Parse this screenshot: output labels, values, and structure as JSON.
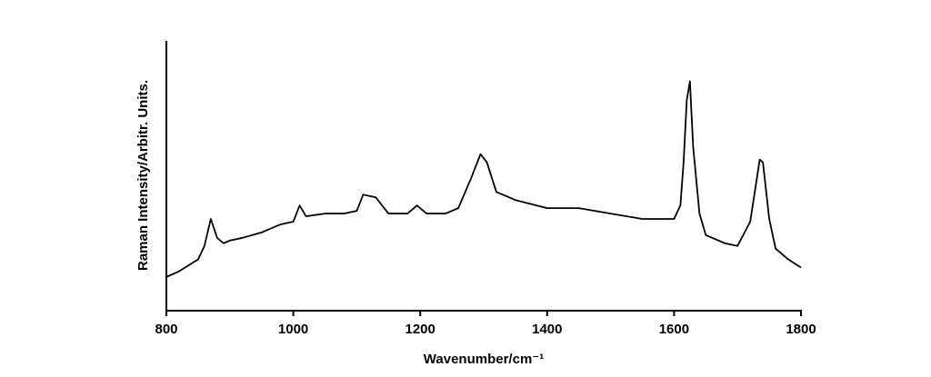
{
  "chart_data": {
    "type": "line",
    "xlabel": "Wavenumber/cm⁻¹",
    "ylabel": "Raman Intensity/Arbitr. Units.",
    "x": [
      800,
      820,
      850,
      860,
      870,
      880,
      890,
      900,
      920,
      950,
      980,
      1000,
      1010,
      1020,
      1050,
      1080,
      1100,
      1110,
      1130,
      1150,
      1180,
      1195,
      1210,
      1240,
      1260,
      1280,
      1295,
      1305,
      1320,
      1350,
      1400,
      1450,
      1500,
      1550,
      1600,
      1610,
      1615,
      1620,
      1625,
      1630,
      1640,
      1650,
      1680,
      1700,
      1720,
      1735,
      1740,
      1750,
      1760,
      1780,
      1800
    ],
    "series": [
      {
        "color": "#000000",
        "values": [
          12.5,
          14.6,
          19,
          24,
          34,
          27,
          25,
          26,
          27,
          29,
          32,
          33,
          39,
          35,
          36,
          36,
          37,
          43,
          42,
          36,
          36,
          39,
          36,
          36,
          38,
          49,
          58,
          55,
          44,
          41,
          38,
          38,
          36,
          34,
          34,
          39,
          55,
          78,
          85,
          61,
          36,
          28,
          25,
          24,
          33,
          56,
          55,
          34,
          23,
          19,
          16
        ]
      }
    ],
    "xlim": [
      800,
      1800
    ],
    "xticks": [
      800,
      1000,
      1200,
      1400,
      1600,
      1800
    ],
    "ylim": [
      0,
      100
    ]
  }
}
